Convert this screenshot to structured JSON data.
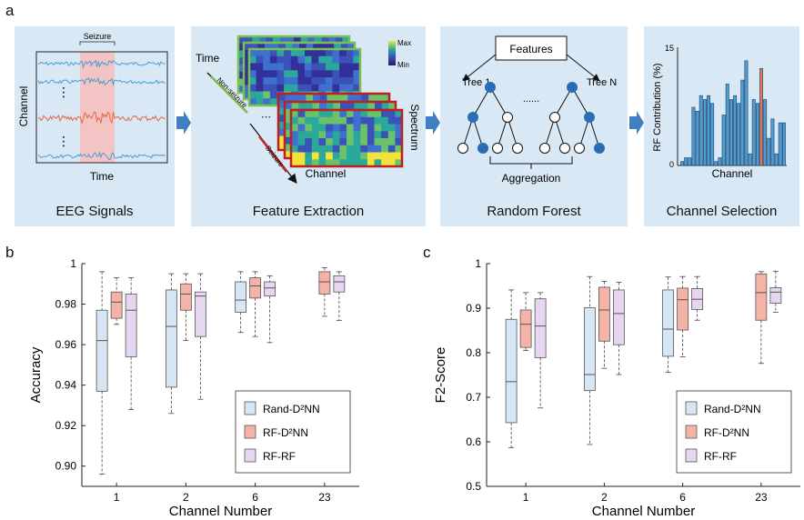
{
  "labels": {
    "a": "a",
    "b": "b",
    "c": "c"
  },
  "colors": {
    "panel_bg": "#d9e8f5",
    "arrow": "#3f7fc2",
    "eeg_blue": "#4f9dd0",
    "eeg_orange": "#e06a48",
    "seizure_shade": "#f2c4c4",
    "rand": "#d6e6f4",
    "rf_d2nn": "#f5b3a8",
    "rf_rf": "#e7d6f0",
    "tree_fill": "#2b6db4",
    "bar_blue": "#4f9dd0",
    "bar_orange": "#e07a55"
  },
  "schematic": {
    "eeg": {
      "caption": "EEG Signals",
      "seizure": "Seizure",
      "y_label": "Channel",
      "x_label": "Time"
    },
    "feature": {
      "caption": "Feature Extraction",
      "time": "Time",
      "non_seizure": "Non-seizure",
      "seizure": "Seizure",
      "channel": "Channel",
      "spectrum": "Spectrum",
      "colorbar_max": "Max",
      "colorbar_min": "Min"
    },
    "forest": {
      "caption": "Random Forest",
      "features": "Features",
      "tree1": "Tree 1",
      "treeN": "Tree N",
      "dots": "......",
      "aggregation": "Aggregation"
    },
    "selection": {
      "caption": "Channel Selection",
      "y_label": "RF Contribution (%)",
      "x_label": "Channel",
      "y_max_tick": "15",
      "y_min_tick": "0",
      "values": [
        0.5,
        1,
        1,
        7.5,
        7,
        9,
        8.5,
        9,
        8,
        0.5,
        1,
        6.5,
        10.5,
        8.5,
        9,
        8,
        11,
        13.5,
        1.5,
        8.5,
        8,
        12.5,
        8.5,
        3.5,
        6,
        1.5,
        5.5,
        5.5
      ],
      "highlight_index": 21
    }
  },
  "chart_data": [
    {
      "type": "box",
      "panel": "b",
      "xlabel": "Channel Number",
      "ylabel": "Accuracy",
      "ylim": [
        0.89,
        1.0
      ],
      "yticks": [
        0.9,
        0.92,
        0.94,
        0.96,
        0.98,
        1
      ],
      "ytick_labels": [
        "0.90",
        "0.92",
        "0.94",
        "0.96",
        "0.98",
        "1"
      ],
      "categories": [
        "1",
        "2",
        "6",
        "23"
      ],
      "series": [
        {
          "name": "Rand-D²NN",
          "color": "#d6e6f4",
          "boxes": [
            {
              "min": 0.896,
              "q1": 0.937,
              "median": 0.962,
              "q3": 0.977,
              "max": 0.996
            },
            {
              "min": 0.926,
              "q1": 0.939,
              "median": 0.969,
              "q3": 0.987,
              "max": 0.995
            },
            {
              "min": 0.966,
              "q1": 0.976,
              "median": 0.982,
              "q3": 0.991,
              "max": 0.996
            },
            null
          ]
        },
        {
          "name": "RF-D²NN",
          "color": "#f5b3a8",
          "boxes": [
            {
              "min": 0.97,
              "q1": 0.973,
              "median": 0.981,
              "q3": 0.986,
              "max": 0.993
            },
            {
              "min": 0.962,
              "q1": 0.977,
              "median": 0.985,
              "q3": 0.99,
              "max": 0.995
            },
            {
              "min": 0.964,
              "q1": 0.983,
              "median": 0.989,
              "q3": 0.993,
              "max": 0.996
            },
            {
              "min": 0.974,
              "q1": 0.985,
              "median": 0.991,
              "q3": 0.996,
              "max": 0.998
            }
          ]
        },
        {
          "name": "RF-RF",
          "color": "#e7d6f0",
          "boxes": [
            {
              "min": 0.928,
              "q1": 0.954,
              "median": 0.977,
              "q3": 0.985,
              "max": 0.993
            },
            {
              "min": 0.933,
              "q1": 0.964,
              "median": 0.984,
              "q3": 0.986,
              "max": 0.995
            },
            {
              "min": 0.961,
              "q1": 0.984,
              "median": 0.988,
              "q3": 0.991,
              "max": 0.994
            },
            {
              "min": 0.972,
              "q1": 0.986,
              "median": 0.991,
              "q3": 0.994,
              "max": 0.996
            }
          ]
        }
      ],
      "legend_position": "lower-right"
    },
    {
      "type": "box",
      "panel": "c",
      "xlabel": "Channel Number",
      "ylabel": "F2-Score",
      "ylim": [
        0.5,
        1.0
      ],
      "yticks": [
        0.5,
        0.6,
        0.7,
        0.8,
        0.9,
        1
      ],
      "ytick_labels": [
        "0.5",
        "0.6",
        "0.7",
        "0.8",
        "0.9",
        "1"
      ],
      "categories": [
        "1",
        "2",
        "6",
        "23"
      ],
      "series": [
        {
          "name": "Rand-D²NN",
          "color": "#d6e6f4",
          "boxes": [
            {
              "min": 0.587,
              "q1": 0.643,
              "median": 0.735,
              "q3": 0.875,
              "max": 0.941
            },
            {
              "min": 0.594,
              "q1": 0.715,
              "median": 0.751,
              "q3": 0.901,
              "max": 0.971
            },
            {
              "min": 0.756,
              "q1": 0.792,
              "median": 0.853,
              "q3": 0.941,
              "max": 0.97
            },
            null
          ]
        },
        {
          "name": "RF-D²NN",
          "color": "#f5b3a8",
          "boxes": [
            {
              "min": 0.805,
              "q1": 0.812,
              "median": 0.864,
              "q3": 0.896,
              "max": 0.935
            },
            {
              "min": 0.765,
              "q1": 0.826,
              "median": 0.896,
              "q3": 0.947,
              "max": 0.96
            },
            {
              "min": 0.791,
              "q1": 0.851,
              "median": 0.919,
              "q3": 0.945,
              "max": 0.971
            },
            {
              "min": 0.776,
              "q1": 0.873,
              "median": 0.935,
              "q3": 0.977,
              "max": 0.982
            }
          ]
        },
        {
          "name": "RF-RF",
          "color": "#e7d6f0",
          "boxes": [
            {
              "min": 0.676,
              "q1": 0.789,
              "median": 0.86,
              "q3": 0.921,
              "max": 0.935
            },
            {
              "min": 0.751,
              "q1": 0.818,
              "median": 0.888,
              "q3": 0.941,
              "max": 0.958
            },
            {
              "min": 0.873,
              "q1": 0.897,
              "median": 0.92,
              "q3": 0.944,
              "max": 0.971
            },
            {
              "min": 0.891,
              "q1": 0.911,
              "median": 0.936,
              "q3": 0.946,
              "max": 0.983
            }
          ]
        }
      ],
      "legend_position": "lower-right"
    }
  ]
}
